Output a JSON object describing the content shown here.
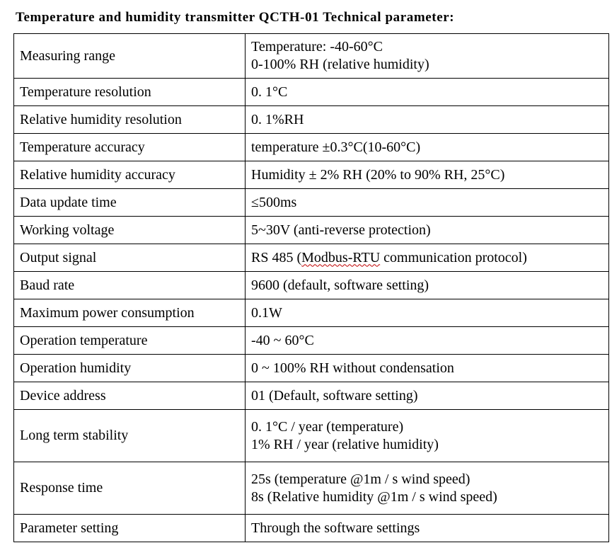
{
  "title": "Temperature and humidity transmitter QCTH-01 Technical  parameter:",
  "rows": [
    {
      "name": "Measuring range",
      "values": [
        "Temperature: -40-60°C",
        "0-100% RH (relative humidity)"
      ]
    },
    {
      "name": "Temperature resolution",
      "values": [
        "0. 1°C"
      ]
    },
    {
      "name": "Relative humidity resolution",
      "values": [
        "0. 1%RH"
      ]
    },
    {
      "name": "Temperature accuracy",
      "values": [
        "temperature ±0.3°C(10-60°C)"
      ]
    },
    {
      "name": "Relative humidity accuracy",
      "values": [
        "Humidity ± 2% RH (20% to 90% RH, 25°C)"
      ]
    },
    {
      "name": "Data update time",
      "values": [
        "≤500ms"
      ]
    },
    {
      "name": "Working voltage",
      "values": [
        "5~30V (anti-reverse protection)"
      ]
    },
    {
      "name": "Output signal",
      "values": [
        "RS 485 (",
        "Modbus-RTU",
        " communication protocol)"
      ]
    },
    {
      "name": "Baud rate",
      "values": [
        "9600 (default, software setting)"
      ]
    },
    {
      "name": "Maximum power consumption",
      "values": [
        "0.1W"
      ]
    },
    {
      "name": "Operation temperature",
      "values": [
        "-40 ~ 60°C"
      ]
    },
    {
      "name": "Operation humidity",
      "values": [
        "0 ~ 100% RH without condensation"
      ]
    },
    {
      "name": "Device address",
      "values": [
        "01 (Default, software setting)"
      ]
    },
    {
      "name": "Long term stability",
      "values": [
        "0. 1°C / year (temperature)",
        "1% RH / year (relative humidity)"
      ]
    },
    {
      "name": "Response time",
      "values": [
        "25s (temperature @1m / s wind speed)",
        "8s (Relative humidity @1m / s wind speed)"
      ]
    },
    {
      "name": "Parameter setting",
      "values": [
        "Through the software settings"
      ]
    }
  ]
}
